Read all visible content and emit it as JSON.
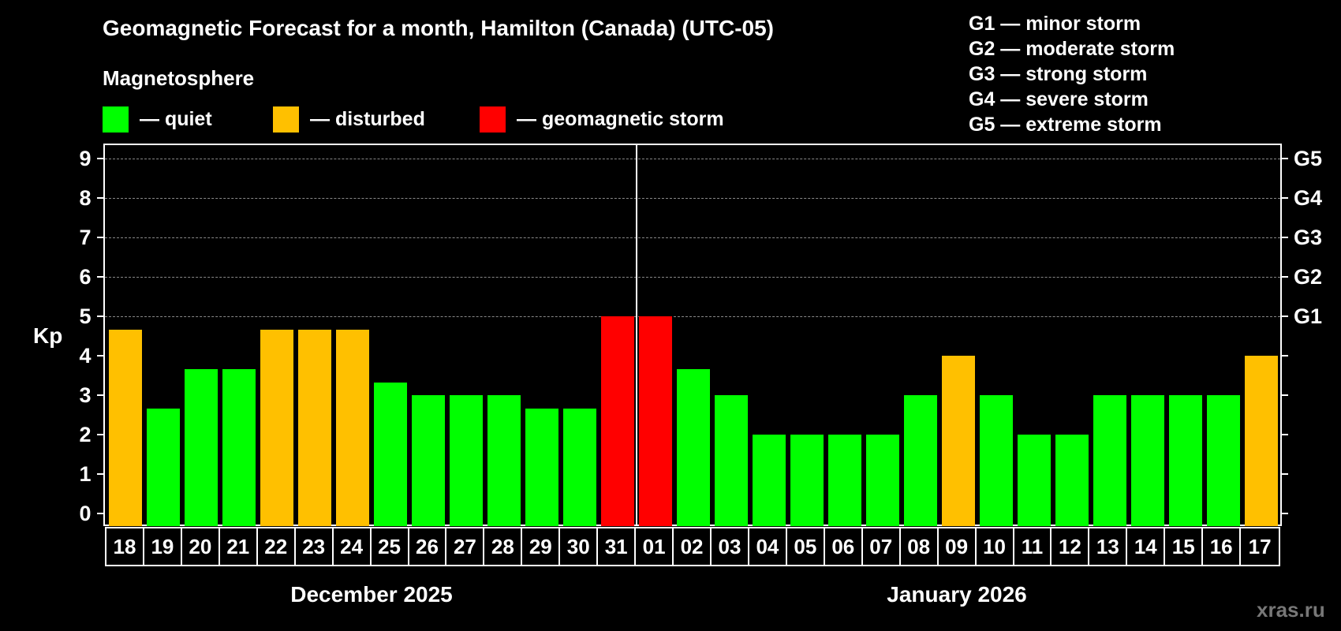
{
  "header": {
    "title": "Geomagnetic Forecast for a month, Hamilton (Canada) (UTC-05)",
    "magnetosphere_label": "Magnetosphere"
  },
  "legend": {
    "items": [
      {
        "label": "— quiet",
        "color": "#00ff00"
      },
      {
        "label": "— disturbed",
        "color": "#ffc000"
      },
      {
        "label": "— geomagnetic storm",
        "color": "#ff0000"
      }
    ]
  },
  "storm_scale": [
    "G1 — minor storm",
    "G2 — moderate storm",
    "G3 — strong storm",
    "G4 — severe storm",
    "G5 — extreme storm"
  ],
  "axis": {
    "ylabel": "Kp",
    "yticks": [
      "0",
      "1",
      "2",
      "3",
      "4",
      "5",
      "6",
      "7",
      "8",
      "9"
    ],
    "g_ticks": [
      {
        "kp": 5,
        "label": "G1"
      },
      {
        "kp": 6,
        "label": "G2"
      },
      {
        "kp": 7,
        "label": "G3"
      },
      {
        "kp": 8,
        "label": "G4"
      },
      {
        "kp": 9,
        "label": "G5"
      }
    ]
  },
  "months": [
    {
      "label": "December 2025"
    },
    {
      "label": "January 2026"
    }
  ],
  "watermark": "xras.ru",
  "chart_data": {
    "type": "bar",
    "title": "Geomagnetic Forecast for a month, Hamilton (Canada) (UTC-05)",
    "xlabel": "",
    "ylabel": "Kp",
    "ylim": [
      0,
      9
    ],
    "grid": true,
    "legend_position": "top",
    "categories": [
      "18",
      "19",
      "20",
      "21",
      "22",
      "23",
      "24",
      "25",
      "26",
      "27",
      "28",
      "29",
      "30",
      "31",
      "01",
      "02",
      "03",
      "04",
      "05",
      "06",
      "07",
      "08",
      "09",
      "10",
      "11",
      "12",
      "13",
      "14",
      "15",
      "16",
      "17"
    ],
    "months": [
      "December 2025",
      "January 2026"
    ],
    "values": [
      4.67,
      2.67,
      3.67,
      3.67,
      4.67,
      4.67,
      4.67,
      3.33,
      3,
      3,
      3,
      2.67,
      2.67,
      5,
      5,
      3.67,
      3,
      2,
      2,
      2,
      2,
      3,
      4,
      3,
      2,
      2,
      3,
      3,
      3,
      3,
      4
    ],
    "status": [
      "disturbed",
      "quiet",
      "quiet",
      "quiet",
      "disturbed",
      "disturbed",
      "disturbed",
      "quiet",
      "quiet",
      "quiet",
      "quiet",
      "quiet",
      "quiet",
      "storm",
      "storm",
      "quiet",
      "quiet",
      "quiet",
      "quiet",
      "quiet",
      "quiet",
      "quiet",
      "disturbed",
      "quiet",
      "quiet",
      "quiet",
      "quiet",
      "quiet",
      "quiet",
      "quiet",
      "disturbed"
    ],
    "status_colors": {
      "quiet": "#00ff00",
      "disturbed": "#ffc000",
      "storm": "#ff0000"
    },
    "right_axis_labels": {
      "5": "G1",
      "6": "G2",
      "7": "G3",
      "8": "G4",
      "9": "G5"
    }
  }
}
